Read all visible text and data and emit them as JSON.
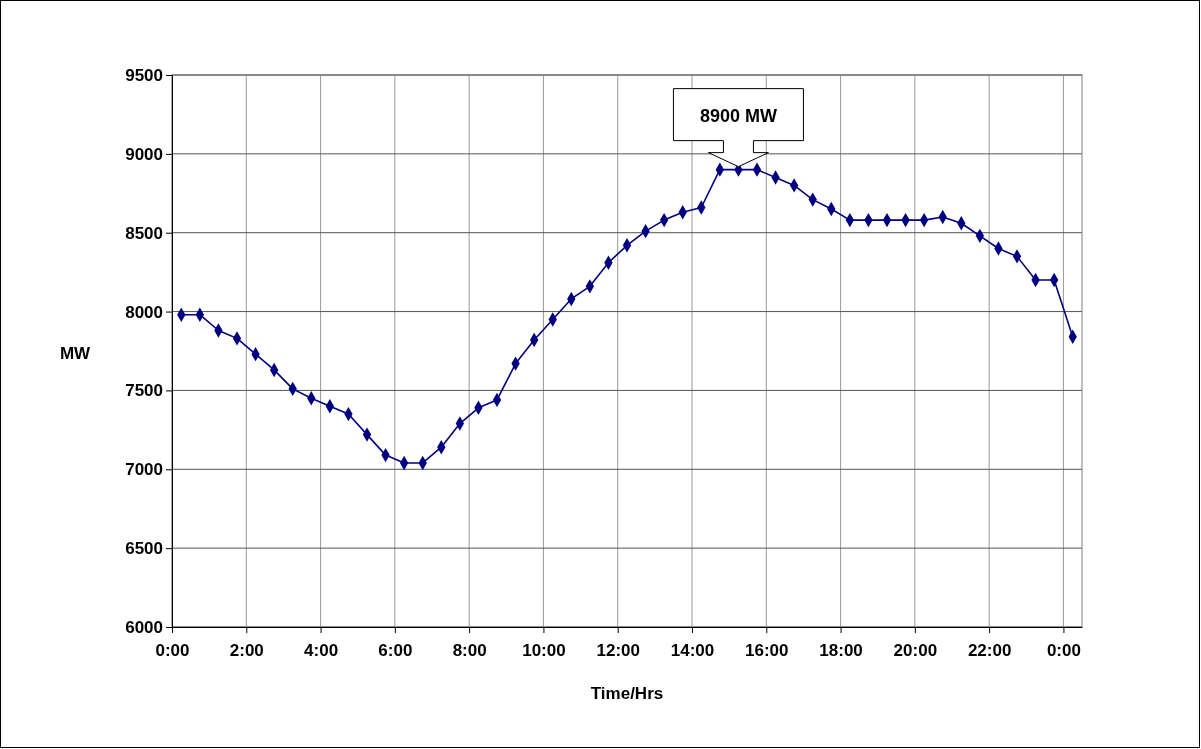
{
  "chart_data": {
    "type": "line",
    "xlabel": "Time/Hrs",
    "ylabel": "MW",
    "x": [
      0.25,
      0.75,
      1.25,
      1.75,
      2.25,
      2.75,
      3.25,
      3.75,
      4.25,
      4.75,
      5.25,
      5.75,
      6.25,
      6.75,
      7.25,
      7.75,
      8.25,
      8.75,
      9.25,
      9.75,
      10.25,
      10.75,
      11.25,
      11.75,
      12.25,
      12.75,
      13.25,
      13.75,
      14.25,
      14.75,
      15.25,
      15.75,
      16.25,
      16.75,
      17.25,
      17.75,
      18.25,
      18.75,
      19.25,
      19.75,
      20.25,
      20.75,
      21.25,
      21.75,
      22.25,
      22.75,
      23.25,
      23.75,
      24.25
    ],
    "series": [
      {
        "color": "#000080",
        "values": [
          7980,
          7980,
          7880,
          7830,
          7730,
          7630,
          7510,
          7450,
          7400,
          7350,
          7220,
          7090,
          7040,
          7040,
          7140,
          7290,
          7390,
          7440,
          7670,
          7820,
          7950,
          8080,
          8160,
          8310,
          8420,
          8510,
          8580,
          8630,
          8660,
          8900,
          8900,
          8900,
          8850,
          8800,
          8710,
          8650,
          8580,
          8580,
          8580,
          8580,
          8580,
          8600,
          8560,
          8480,
          8400,
          8350,
          8200,
          8200,
          7840
        ]
      }
    ],
    "xlim": [
      0,
      24.5
    ],
    "xticks": [
      {
        "value": 0,
        "label": "0:00"
      },
      {
        "value": 2,
        "label": "2:00"
      },
      {
        "value": 4,
        "label": "4:00"
      },
      {
        "value": 6,
        "label": "6:00"
      },
      {
        "value": 8,
        "label": "8:00"
      },
      {
        "value": 10,
        "label": "10:00"
      },
      {
        "value": 12,
        "label": "12:00"
      },
      {
        "value": 14,
        "label": "14:00"
      },
      {
        "value": 16,
        "label": "16:00"
      },
      {
        "value": 18,
        "label": "18:00"
      },
      {
        "value": 20,
        "label": "20:00"
      },
      {
        "value": 22,
        "label": "22:00"
      },
      {
        "value": 24,
        "label": "0:00"
      }
    ],
    "ylim": [
      6000,
      9500
    ],
    "yticks": [
      6000,
      6500,
      7000,
      7500,
      8000,
      8500,
      9000,
      9500
    ],
    "grid": true,
    "marker": "diamond",
    "line_style": "solid",
    "annotations": [
      {
        "text": "8900 MW",
        "x": 15.25,
        "y": 8900
      }
    ]
  }
}
